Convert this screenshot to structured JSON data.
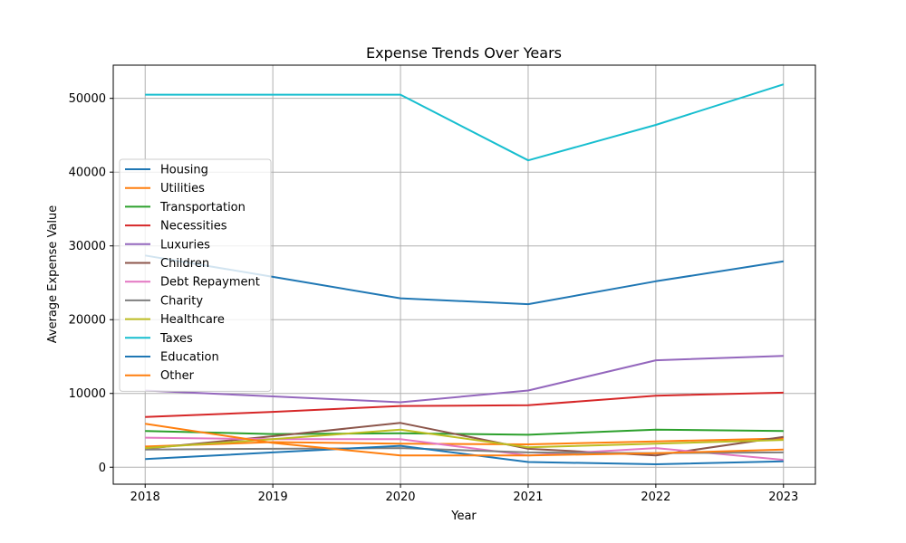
{
  "chart_data": {
    "type": "line",
    "title": "Expense Trends Over Years",
    "xlabel": "Year",
    "ylabel": "Average Expense Value",
    "x": [
      2018,
      2019,
      2020,
      2021,
      2022,
      2023
    ],
    "xlim": [
      2017.75,
      2023.25
    ],
    "ylim": [
      -2300,
      54500
    ],
    "yticks": [
      0,
      10000,
      20000,
      30000,
      40000,
      50000
    ],
    "grid": true,
    "legend_position": "center-left",
    "series": [
      {
        "name": "Housing",
        "color": "#1f77b4",
        "values": [
          28700,
          25800,
          22900,
          22100,
          25200,
          27900
        ]
      },
      {
        "name": "Utilities",
        "color": "#ff7f0e",
        "values": [
          2800,
          3400,
          3200,
          3100,
          3500,
          3900
        ]
      },
      {
        "name": "Transportation",
        "color": "#2ca02c",
        "values": [
          4900,
          4500,
          4600,
          4400,
          5100,
          4900
        ]
      },
      {
        "name": "Necessities",
        "color": "#d62728",
        "values": [
          6800,
          7500,
          8300,
          8400,
          9700,
          10100
        ]
      },
      {
        "name": "Luxuries",
        "color": "#9467bd",
        "values": [
          10400,
          9600,
          8800,
          10400,
          14500,
          15100
        ]
      },
      {
        "name": "Children",
        "color": "#8c564b",
        "values": [
          2500,
          4200,
          6000,
          2500,
          1600,
          4100
        ]
      },
      {
        "name": "Debt Repayment",
        "color": "#e377c2",
        "values": [
          4000,
          3800,
          3800,
          1600,
          2600,
          1000
        ]
      },
      {
        "name": "Charity",
        "color": "#7f7f7f",
        "values": [
          2400,
          2500,
          2600,
          2000,
          1900,
          2000
        ]
      },
      {
        "name": "Healthcare",
        "color": "#bcbd22",
        "values": [
          2600,
          3800,
          5100,
          2700,
          3200,
          3700
        ]
      },
      {
        "name": "Taxes",
        "color": "#17becf",
        "values": [
          50500,
          50500,
          50500,
          41600,
          46400,
          51900
        ]
      },
      {
        "name": "Education",
        "color": "#1f77b4",
        "values": [
          1100,
          2000,
          2900,
          700,
          400,
          800
        ]
      },
      {
        "name": "Other",
        "color": "#ff7f0e",
        "values": [
          5900,
          3300,
          1600,
          1600,
          1900,
          2400
        ]
      }
    ]
  }
}
